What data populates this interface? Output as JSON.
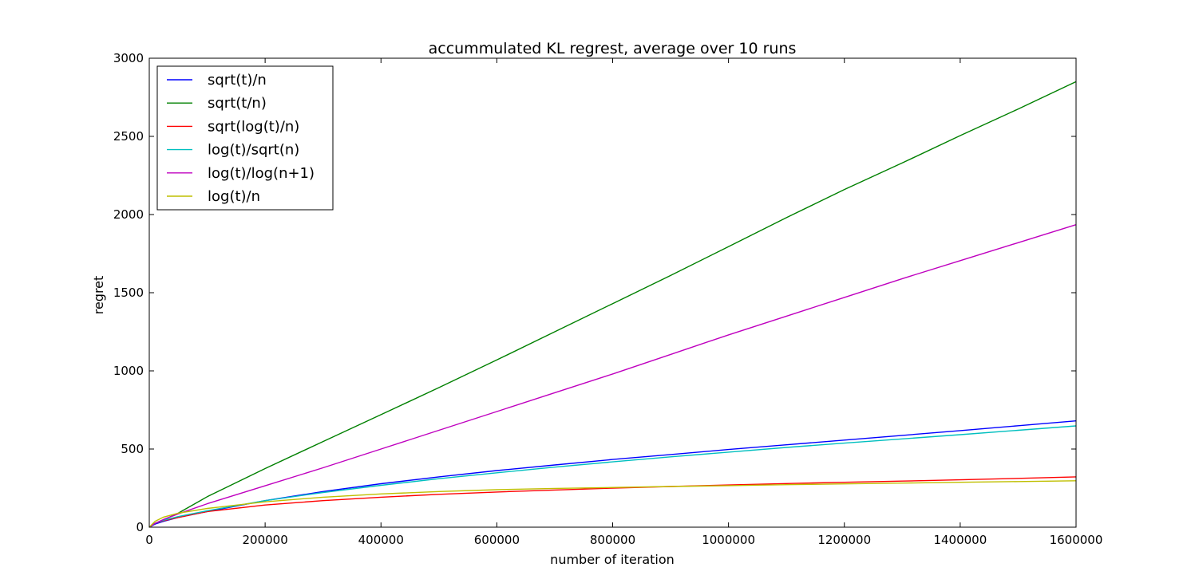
{
  "chart_data": {
    "type": "line",
    "title": "accummulated KL regrest, average over 10 runs",
    "xlabel": "number of iteration",
    "ylabel": "regret",
    "xlim": [
      0,
      1600000
    ],
    "ylim": [
      0,
      3000
    ],
    "x_ticks": [
      0,
      200000,
      400000,
      600000,
      800000,
      1000000,
      1200000,
      1400000,
      1600000
    ],
    "x_tick_labels": [
      "0",
      "200000",
      "400000",
      "600000",
      "800000",
      "1000000",
      "1200000",
      "1400000",
      "1600000"
    ],
    "y_ticks": [
      0,
      500,
      1000,
      1500,
      2000,
      2500,
      3000
    ],
    "y_tick_labels": [
      "0",
      "500",
      "1000",
      "1500",
      "2000",
      "2500",
      "3000"
    ],
    "grid": false,
    "legend_position": "top-left",
    "x": [
      0,
      10000,
      25000,
      50000,
      100000,
      200000,
      300000,
      400000,
      500000,
      600000,
      700000,
      800000,
      900000,
      1000000,
      1100000,
      1200000,
      1300000,
      1400000,
      1500000,
      1600000
    ],
    "series": [
      {
        "name": "sqrt(t)/n",
        "color": "#0000ff",
        "values": [
          0,
          20,
          38,
          62,
          100,
          170,
          228,
          278,
          322,
          362,
          398,
          433,
          465,
          497,
          527,
          557,
          587,
          618,
          649,
          680
        ]
      },
      {
        "name": "sqrt(t/n)",
        "color": "#008000",
        "values": [
          0,
          25,
          48,
          90,
          195,
          375,
          548,
          720,
          893,
          1070,
          1250,
          1430,
          1610,
          1795,
          1980,
          2160,
          2330,
          2505,
          2675,
          2850
        ]
      },
      {
        "name": "sqrt(log(t)/n)",
        "color": "#ff0000",
        "values": [
          0,
          25,
          42,
          62,
          100,
          142,
          170,
          192,
          210,
          225,
          238,
          250,
          260,
          270,
          279,
          287,
          295,
          303,
          312,
          322
        ]
      },
      {
        "name": "log(t)/sqrt(n)",
        "color": "#00bfbf",
        "values": [
          0,
          25,
          45,
          68,
          105,
          170,
          222,
          268,
          310,
          348,
          384,
          418,
          450,
          480,
          510,
          538,
          565,
          592,
          620,
          648
        ]
      },
      {
        "name": "log(t)/log(n+1)",
        "color": "#bf00bf",
        "values": [
          0,
          25,
          50,
          85,
          150,
          265,
          380,
          500,
          620,
          740,
          860,
          980,
          1105,
          1230,
          1350,
          1470,
          1590,
          1705,
          1820,
          1935
        ]
      },
      {
        "name": "log(t)/n",
        "color": "#bfbf00",
        "values": [
          0,
          38,
          65,
          90,
          120,
          162,
          192,
          213,
          228,
          240,
          248,
          254,
          260,
          266,
          272,
          277,
          282,
          287,
          292,
          297
        ]
      }
    ]
  }
}
